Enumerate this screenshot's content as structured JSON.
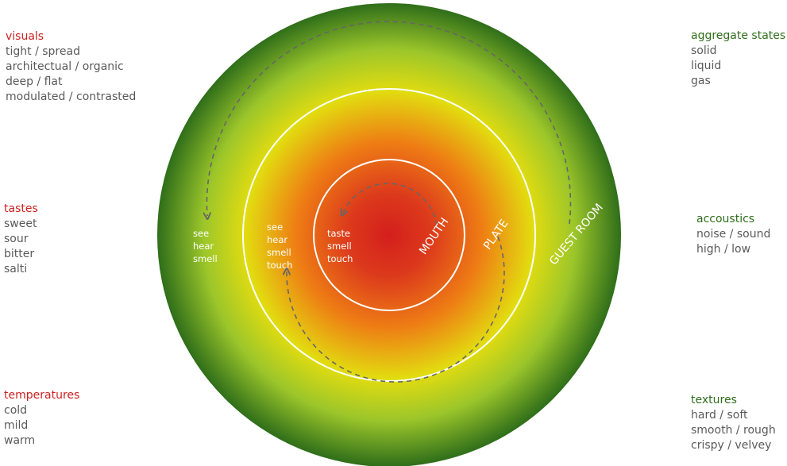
{
  "colors": {
    "core": "#d41f1c",
    "orange": "#ee7d14",
    "yellow": "#e2dc10",
    "lime": "#9cc62a",
    "outer": "#2f6e1a",
    "ring": "#ffffff",
    "arrow": "#666666",
    "category_red": "#cc1f1f",
    "category_green": "#2f6e1a",
    "item_text": "#5a5a5a"
  },
  "rings": {
    "mouth": "MOUTH",
    "plate": "PLATE",
    "guest_room": "GUEST ROOM"
  },
  "senses": {
    "mouth": [
      "taste",
      "smell",
      "touch"
    ],
    "plate": [
      "see",
      "hear",
      "smell",
      "touch"
    ],
    "guest_room": [
      "see",
      "hear",
      "smell"
    ]
  },
  "categories": {
    "visuals": {
      "title": "visuals",
      "items": [
        "tight / spread",
        "architectual / organic",
        "deep / flat",
        "modulated / contrasted"
      ]
    },
    "tastes": {
      "title": "tastes",
      "items": [
        "sweet",
        "sour",
        "bitter",
        "salti"
      ]
    },
    "temperatures": {
      "title": "temperatures",
      "items": [
        "cold",
        "mild",
        "warm"
      ]
    },
    "aggregate_states": {
      "title": "aggregate states",
      "items": [
        "solid",
        "liquid",
        "gas"
      ]
    },
    "accoustics": {
      "title": "accoustics",
      "items": [
        "noise / sound",
        "high / low"
      ]
    },
    "textures": {
      "title": "textures",
      "items": [
        "hard / soft",
        "smooth / rough",
        "crispy / velvey"
      ]
    }
  }
}
